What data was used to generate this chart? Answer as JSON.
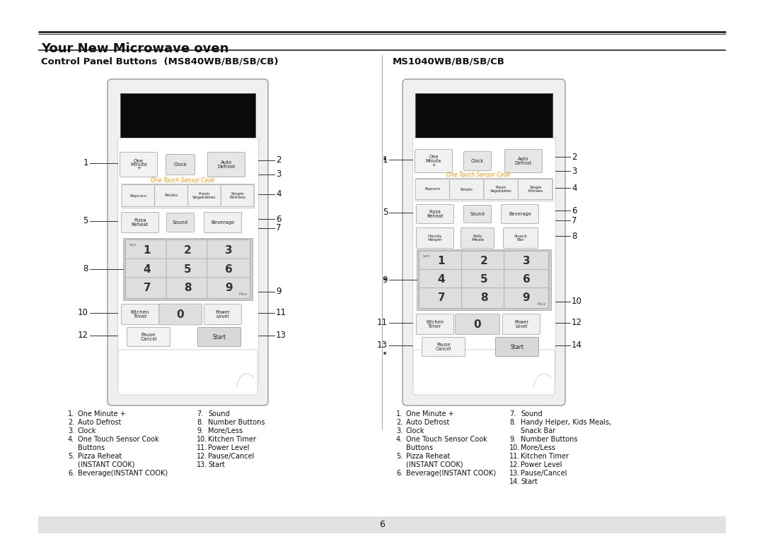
{
  "title": "Your New Microwave oven",
  "left_section_title": "Control Panel Buttons  (MS840WB/BB/SB/CB)",
  "right_section_title": "MS1040WB/BB/SB/CB",
  "bg_color": "#ffffff",
  "page_number": "6",
  "orange_color": "#e8960a",
  "dark_color": "#1a1a1a",
  "line_color": "#333333",
  "label_fontsize": 7.0,
  "number_fontsize": 8.5
}
